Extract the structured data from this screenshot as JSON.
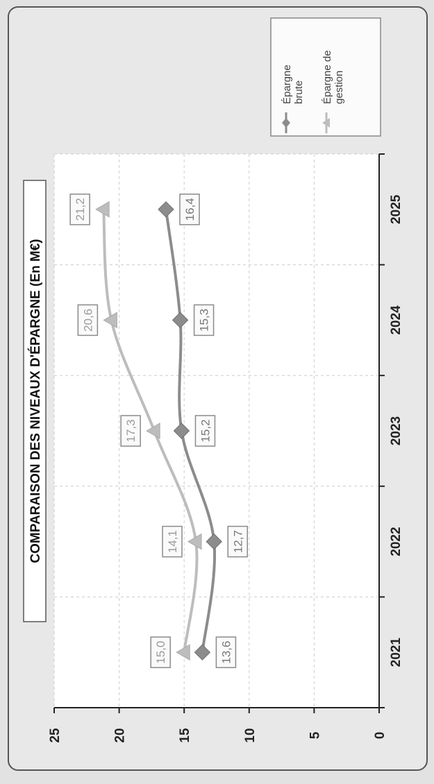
{
  "chart_data": {
    "type": "line",
    "title": "COMPARAISON DES NIVEAUX D'ÉPARGNE (En M€)",
    "categories": [
      "2021",
      "2022",
      "2023",
      "2024",
      "2025"
    ],
    "series": [
      {
        "name": "Épargne de gestion",
        "values": [
          15.0,
          14.1,
          17.3,
          20.6,
          21.2
        ],
        "labels": [
          "15,0",
          "14,1",
          "17,3",
          "20,6",
          "21,2"
        ],
        "color": "#bdbdbd",
        "marker": "triangle"
      },
      {
        "name": "Épargne brute",
        "values": [
          13.6,
          12.7,
          15.2,
          15.3,
          16.4
        ],
        "labels": [
          "13,6",
          "12,7",
          "15,2",
          "15,3",
          "16,4"
        ],
        "color": "#8c8c8c",
        "marker": "diamond"
      }
    ],
    "yticks": [
      "0",
      "5",
      "10",
      "15",
      "20",
      "25"
    ],
    "ylim": [
      0,
      25
    ],
    "grid": true,
    "legend_position": "right",
    "orientation": "rotated-90"
  },
  "colors": {
    "page": "#e2e2e2",
    "plot_bg": "#ffffff",
    "grid": "#cccccc"
  }
}
